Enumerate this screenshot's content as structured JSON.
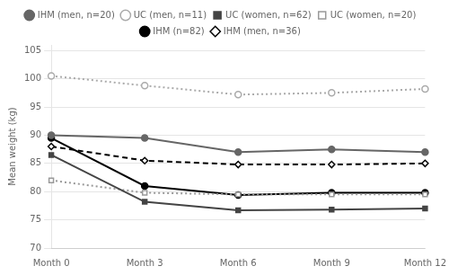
{
  "chart_data": {
    "type": "line",
    "categories": [
      "Month 0",
      "Month 3",
      "Month 6",
      "Month 9",
      "Month 12"
    ],
    "series": [
      {
        "name": "IHM (men, n=20)",
        "color": "#666666",
        "line_style": "solid",
        "marker": "circle",
        "values": [
          90.0,
          89.5,
          87.0,
          87.5,
          87.0
        ]
      },
      {
        "name": "UC (men, n=11)",
        "color": "#aaaaaa",
        "line_style": "dotted",
        "marker": "open_circle",
        "values": [
          100.5,
          98.8,
          97.2,
          97.5,
          98.2
        ]
      },
      {
        "name": "UC (women, n=62)",
        "color": "#444444",
        "line_style": "solid",
        "marker": "square",
        "values": [
          86.5,
          78.2,
          76.7,
          76.8,
          77.0
        ]
      },
      {
        "name": "UC (women, n=20)",
        "color": "#999999",
        "line_style": "dotted",
        "marker": "open_square",
        "values": [
          82.0,
          79.8,
          79.5,
          79.5,
          79.5
        ]
      },
      {
        "name": "IHM (n=82)",
        "color": "#000000",
        "line_style": "solid",
        "marker": "circle",
        "values": [
          89.5,
          81.0,
          79.4,
          79.8,
          79.8
        ]
      },
      {
        "name": "IHM (men, n=36)",
        "color": "#000000",
        "line_style": "dashed",
        "marker": "open_diamond",
        "values": [
          88.0,
          85.5,
          84.8,
          84.8,
          85.0
        ]
      }
    ],
    "y_label": "Mean weight (kg)",
    "ylim": [
      70,
      106
    ],
    "yticks": [
      70,
      75,
      80,
      85,
      90,
      95,
      100,
      105
    ],
    "grid": true,
    "legend": "top"
  }
}
